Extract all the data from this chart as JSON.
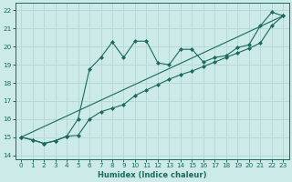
{
  "xlabel": "Humidex (Indice chaleur)",
  "bg_color": "#cceae7",
  "line_color": "#1a6b5a",
  "grid_color": "#b8d8d5",
  "xlim": [
    -0.5,
    23.5
  ],
  "ylim": [
    13.8,
    22.4
  ],
  "yticks": [
    14,
    15,
    16,
    17,
    18,
    19,
    20,
    21,
    22
  ],
  "xticks": [
    0,
    1,
    2,
    3,
    4,
    5,
    6,
    7,
    8,
    9,
    10,
    11,
    12,
    13,
    14,
    15,
    16,
    17,
    18,
    19,
    20,
    21,
    22,
    23
  ],
  "line_spiky_x": [
    0,
    1,
    2,
    3,
    4,
    5,
    6,
    7,
    8,
    9,
    10,
    11,
    12,
    13,
    14,
    15,
    16,
    17,
    18,
    19,
    20,
    21,
    22,
    23
  ],
  "line_spiky_y": [
    15.0,
    14.85,
    14.65,
    14.8,
    15.05,
    16.0,
    18.75,
    19.4,
    20.25,
    19.4,
    20.3,
    20.3,
    19.1,
    19.0,
    19.85,
    19.85,
    19.15,
    19.4,
    19.5,
    19.95,
    20.1,
    21.15,
    21.9,
    21.7
  ],
  "line_smooth_x": [
    0,
    1,
    2,
    3,
    4,
    5,
    6,
    7,
    8,
    9,
    10,
    11,
    12,
    13,
    14,
    15,
    16,
    17,
    18,
    19,
    20,
    21,
    22,
    23
  ],
  "line_smooth_y": [
    15.0,
    14.85,
    14.65,
    14.8,
    15.05,
    15.1,
    16.0,
    16.4,
    16.6,
    16.8,
    17.3,
    17.6,
    17.9,
    18.2,
    18.45,
    18.65,
    18.9,
    19.15,
    19.4,
    19.65,
    19.9,
    20.2,
    21.15,
    21.7
  ],
  "ref_line_x": [
    0,
    23
  ],
  "ref_line_y": [
    15.0,
    21.7
  ]
}
